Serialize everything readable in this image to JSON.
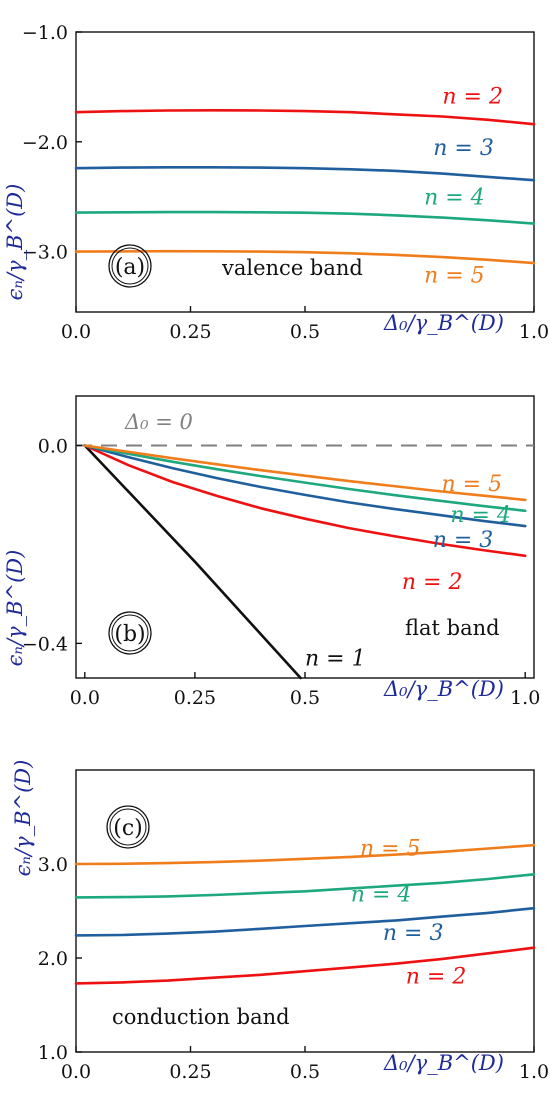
{
  "colors": {
    "n1": "#111111",
    "n2": "#ee1111",
    "n3": "#1f5f9e",
    "n4": "#1ea87e",
    "n5": "#f07d1c",
    "axis_label": "#1f2a99",
    "reference": "#808080"
  },
  "chart_data": [
    {
      "type": "line",
      "panel": "(a)",
      "annotation": "valence band",
      "xlabel": "Δ₀/γ_B^(D)",
      "ylabel": "ϵₙ/γ_B^(D)",
      "xlim": [
        0,
        1
      ],
      "ylim": [
        -3.55,
        -1.0
      ],
      "grid": false,
      "xticks": [
        0,
        0.25,
        0.5,
        1.0
      ],
      "xtick_labels": [
        "0.0",
        "0.25",
        "0.5",
        "1.0"
      ],
      "yticks": [
        -1.0,
        -2.0,
        -3.0
      ],
      "ytick_labels": [
        "−1.0",
        "−2.0",
        "−3.0"
      ],
      "series": [
        {
          "name": "n = 2",
          "color_key": "n2",
          "label_at": [
            0.8,
            -1.65
          ],
          "x": [
            0,
            0.1,
            0.2,
            0.3,
            0.4,
            0.5,
            0.6,
            0.7,
            0.8,
            0.9,
            1.0
          ],
          "y": [
            -1.73,
            -1.72,
            -1.715,
            -1.713,
            -1.715,
            -1.72,
            -1.73,
            -1.75,
            -1.77,
            -1.8,
            -1.84
          ]
        },
        {
          "name": "n = 3",
          "color_key": "n3",
          "label_at": [
            0.78,
            -2.12
          ],
          "x": [
            0,
            0.1,
            0.2,
            0.3,
            0.4,
            0.5,
            0.6,
            0.7,
            0.8,
            0.9,
            1.0
          ],
          "y": [
            -2.24,
            -2.235,
            -2.232,
            -2.232,
            -2.235,
            -2.24,
            -2.25,
            -2.265,
            -2.29,
            -2.32,
            -2.35
          ]
        },
        {
          "name": "n = 4",
          "color_key": "n4",
          "label_at": [
            0.76,
            -2.57
          ],
          "x": [
            0,
            0.1,
            0.2,
            0.3,
            0.4,
            0.5,
            0.6,
            0.7,
            0.8,
            0.9,
            1.0
          ],
          "y": [
            -2.645,
            -2.642,
            -2.64,
            -2.64,
            -2.642,
            -2.646,
            -2.655,
            -2.67,
            -2.69,
            -2.715,
            -2.745
          ]
        },
        {
          "name": "n = 5",
          "color_key": "n5",
          "label_at": [
            0.76,
            -3.28
          ],
          "x": [
            0,
            0.1,
            0.2,
            0.3,
            0.4,
            0.5,
            0.6,
            0.7,
            0.8,
            0.9,
            1.0
          ],
          "y": [
            -3.0,
            -2.998,
            -2.996,
            -2.997,
            -3.0,
            -3.005,
            -3.015,
            -3.03,
            -3.05,
            -3.075,
            -3.105
          ]
        }
      ]
    },
    {
      "type": "line",
      "panel": "(b)",
      "annotation": "flat band",
      "reference_line": {
        "label": "Δ₀ = 0",
        "y": 0.0,
        "style": "dashed"
      },
      "xlabel": "Δ₀/γ_B^(D)",
      "ylabel": "ϵₙ/γ_B^(D)",
      "xlim": [
        -0.02,
        1.02
      ],
      "ylim": [
        -0.47,
        0.1
      ],
      "grid": false,
      "xticks": [
        0,
        0.25,
        0.5,
        1.0
      ],
      "xtick_labels": [
        "0.0",
        "0.25",
        "0.5",
        "1.0"
      ],
      "yticks": [
        0.0,
        -0.4
      ],
      "ytick_labels": [
        "0.0",
        "−0.4"
      ],
      "series": [
        {
          "name": "n = 1",
          "color_key": "n1",
          "label_at": [
            0.5,
            -0.445
          ],
          "x": [
            0,
            0.25,
            0.49
          ],
          "y": [
            0,
            -0.235,
            -0.47
          ]
        },
        {
          "name": "n = 2",
          "color_key": "n2",
          "label_at": [
            0.72,
            -0.29
          ],
          "x": [
            0,
            0.1,
            0.2,
            0.3,
            0.4,
            0.5,
            0.6,
            0.7,
            0.8,
            0.9,
            1.0
          ],
          "y": [
            0,
            -0.04,
            -0.074,
            -0.102,
            -0.127,
            -0.148,
            -0.167,
            -0.183,
            -0.198,
            -0.211,
            -0.223
          ]
        },
        {
          "name": "n = 3",
          "color_key": "n3",
          "label_at": [
            0.79,
            -0.205
          ],
          "x": [
            0,
            0.1,
            0.2,
            0.3,
            0.4,
            0.5,
            0.6,
            0.7,
            0.8,
            0.9,
            1.0
          ],
          "y": [
            0,
            -0.024,
            -0.046,
            -0.066,
            -0.084,
            -0.1,
            -0.115,
            -0.128,
            -0.14,
            -0.152,
            -0.163
          ]
        },
        {
          "name": "n = 4",
          "color_key": "n4",
          "label_at": [
            0.83,
            -0.155
          ],
          "x": [
            0,
            0.1,
            0.2,
            0.3,
            0.4,
            0.5,
            0.6,
            0.7,
            0.8,
            0.9,
            1.0
          ],
          "y": [
            0,
            -0.017,
            -0.033,
            -0.048,
            -0.062,
            -0.075,
            -0.088,
            -0.1,
            -0.111,
            -0.122,
            -0.132
          ]
        },
        {
          "name": "n = 5",
          "color_key": "n5",
          "label_at": [
            0.81,
            -0.092
          ],
          "x": [
            0,
            0.1,
            0.2,
            0.3,
            0.4,
            0.5,
            0.6,
            0.7,
            0.8,
            0.9,
            1.0
          ],
          "y": [
            0,
            -0.013,
            -0.026,
            -0.038,
            -0.05,
            -0.061,
            -0.072,
            -0.082,
            -0.092,
            -0.101,
            -0.11
          ]
        }
      ]
    },
    {
      "type": "line",
      "panel": "(c)",
      "annotation": "conduction band",
      "xlabel": "Δ₀/γ_B^(D)",
      "ylabel": "ϵₙ/γ_B^(D)",
      "xlim": [
        0,
        1
      ],
      "ylim": [
        1.0,
        4.0
      ],
      "grid": false,
      "xticks": [
        0,
        0.25,
        0.5,
        1.0
      ],
      "xtick_labels": [
        "0.0",
        "0.25",
        "0.5",
        "1.0"
      ],
      "yticks": [
        1.0,
        2.0,
        3.0
      ],
      "ytick_labels": [
        "1.0",
        "2.0",
        "3.0"
      ],
      "series": [
        {
          "name": "n = 2",
          "color_key": "n2",
          "label_at": [
            0.72,
            1.73
          ],
          "x": [
            0,
            0.1,
            0.2,
            0.3,
            0.4,
            0.5,
            0.6,
            0.7,
            0.8,
            0.9,
            1.0
          ],
          "y": [
            1.73,
            1.74,
            1.76,
            1.79,
            1.82,
            1.86,
            1.9,
            1.94,
            1.99,
            2.05,
            2.11
          ]
        },
        {
          "name": "n = 3",
          "color_key": "n3",
          "label_at": [
            0.67,
            2.19
          ],
          "x": [
            0,
            0.1,
            0.2,
            0.3,
            0.4,
            0.5,
            0.6,
            0.7,
            0.8,
            0.9,
            1.0
          ],
          "y": [
            2.24,
            2.245,
            2.26,
            2.28,
            2.31,
            2.34,
            2.37,
            2.4,
            2.44,
            2.48,
            2.53
          ]
        },
        {
          "name": "n = 4",
          "color_key": "n4",
          "label_at": [
            0.6,
            2.6
          ],
          "x": [
            0,
            0.1,
            0.2,
            0.3,
            0.4,
            0.5,
            0.6,
            0.7,
            0.8,
            0.9,
            1.0
          ],
          "y": [
            2.645,
            2.648,
            2.655,
            2.67,
            2.69,
            2.71,
            2.74,
            2.77,
            2.8,
            2.84,
            2.89
          ]
        },
        {
          "name": "n = 5",
          "color_key": "n5",
          "label_at": [
            0.62,
            3.09
          ],
          "x": [
            0,
            0.1,
            0.2,
            0.3,
            0.4,
            0.5,
            0.6,
            0.7,
            0.8,
            0.9,
            1.0
          ],
          "y": [
            3.0,
            3.002,
            3.01,
            3.02,
            3.035,
            3.055,
            3.075,
            3.1,
            3.13,
            3.165,
            3.2
          ]
        }
      ]
    }
  ]
}
